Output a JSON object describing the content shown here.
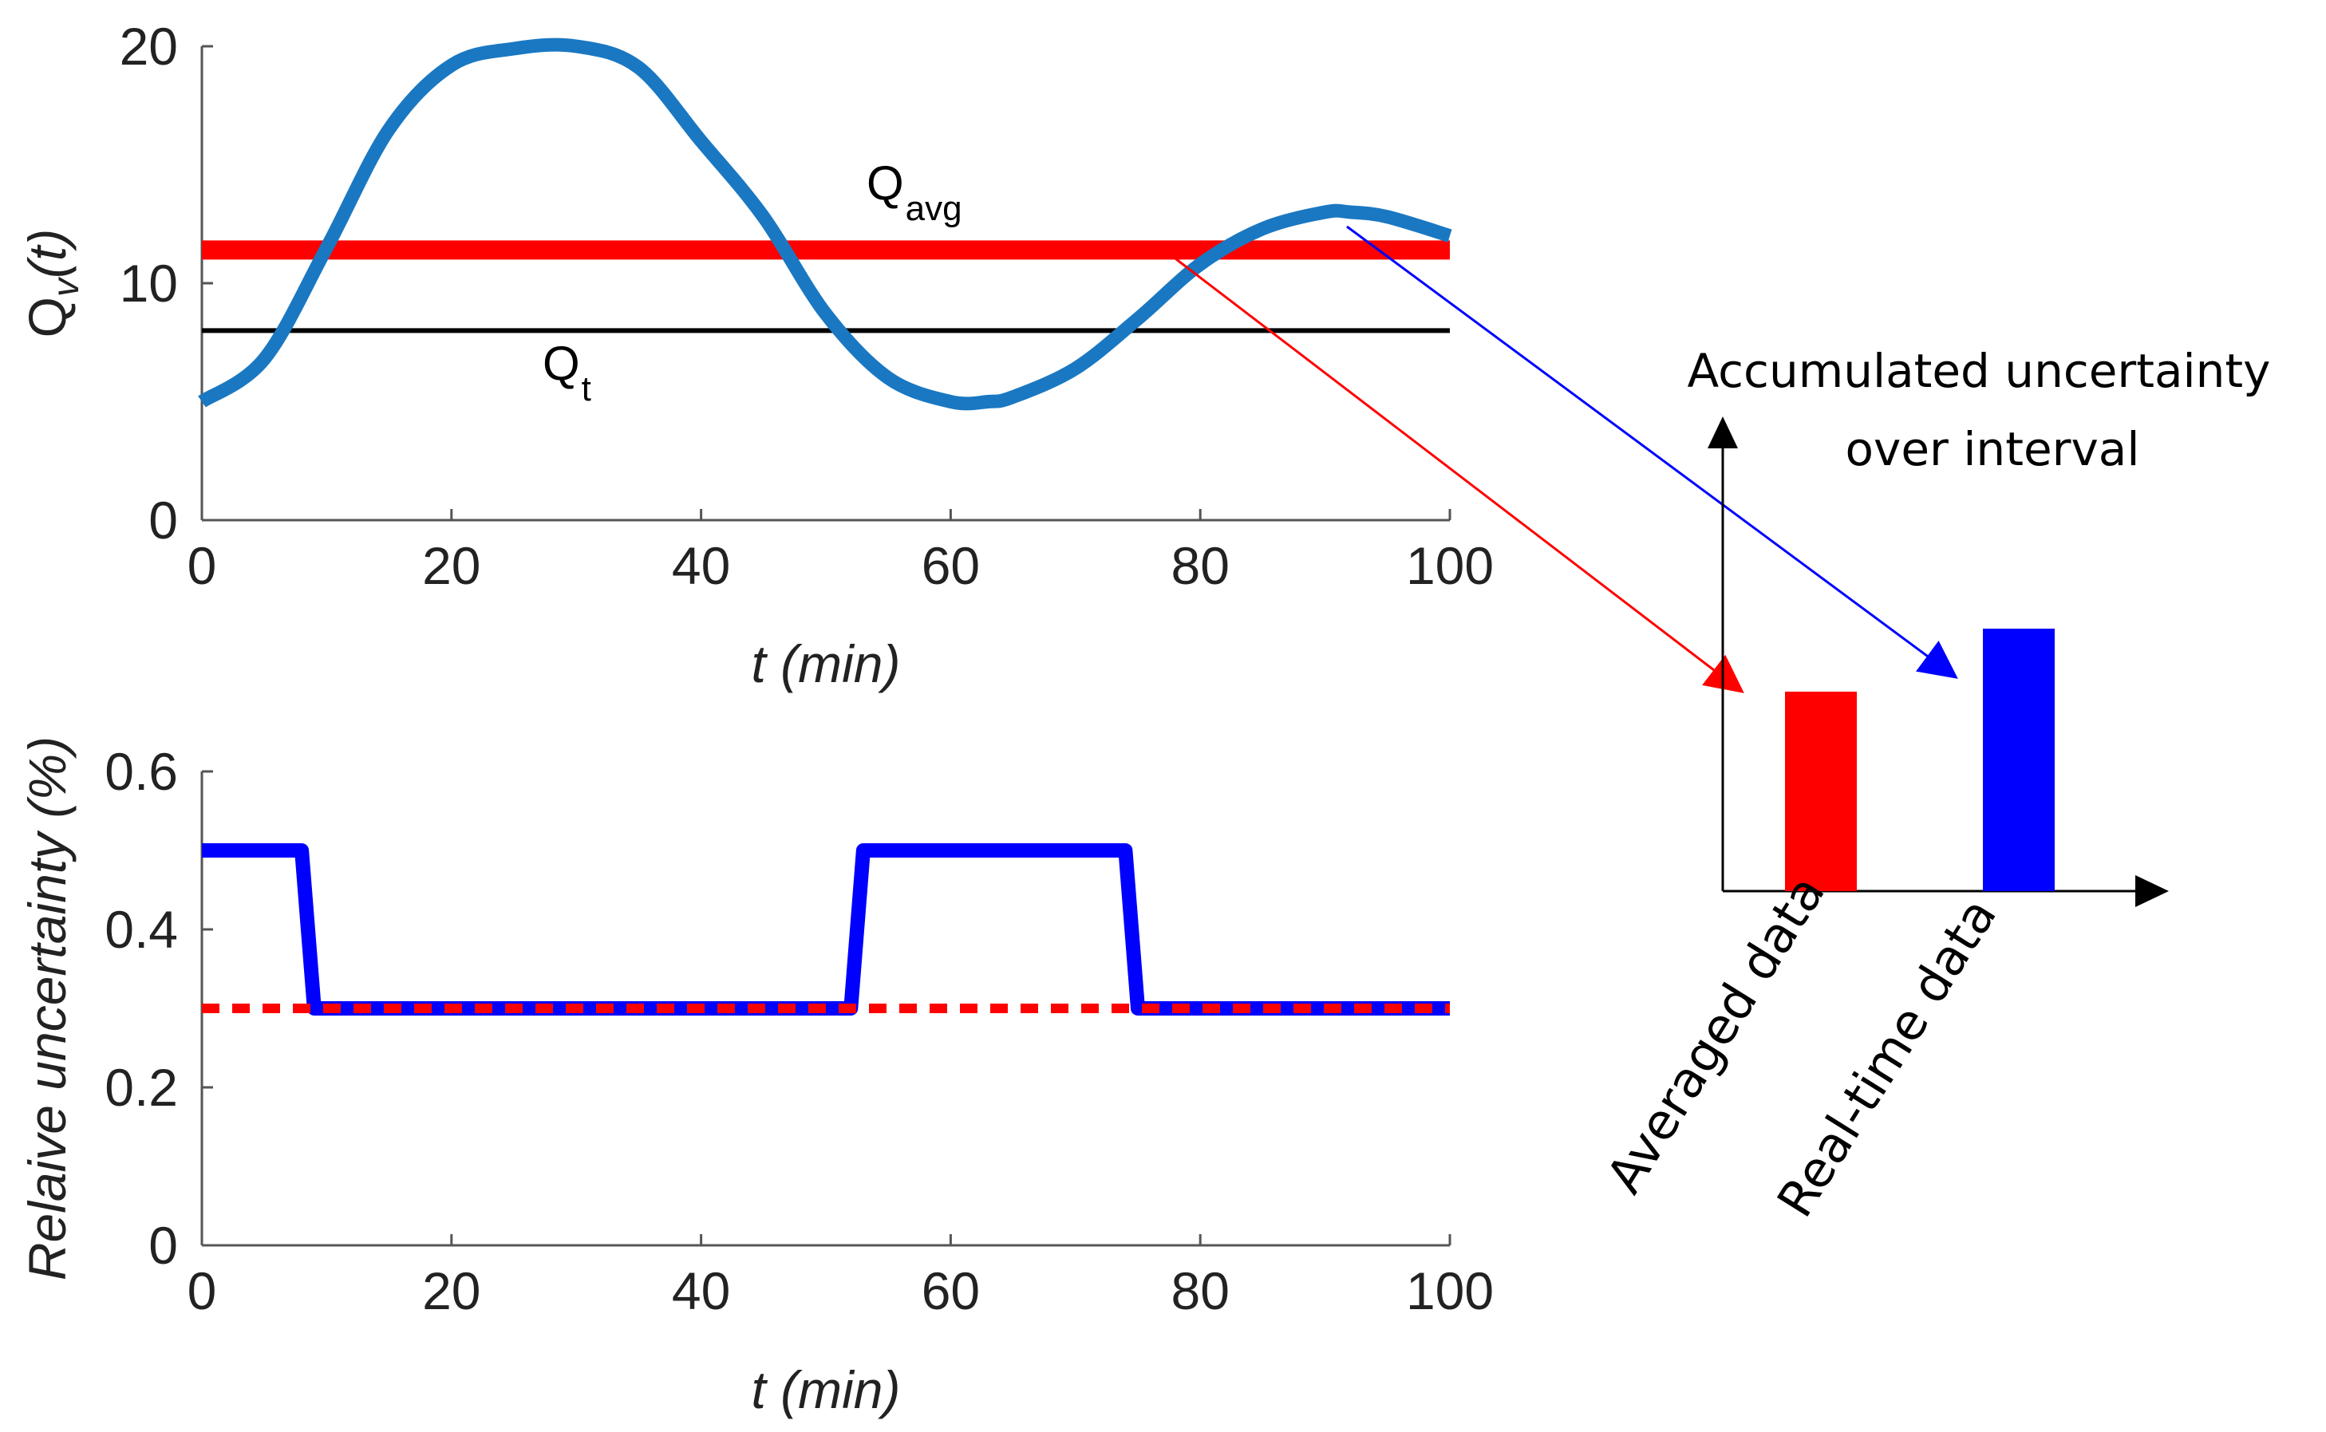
{
  "colors": {
    "flow_series": "#1a78c2",
    "average_line": "#ff0000",
    "threshold_line": "#000000",
    "realtime_uncertainty": "#0000ff",
    "averaged_uncertainty": "#ff0000",
    "axis": "#555555"
  },
  "chart_data": [
    {
      "id": "flow",
      "type": "line",
      "xlabel": "t (min)",
      "ylabel_main": "Q",
      "ylabel_sub": "v",
      "ylabel_tail": "(t)",
      "xlim": [
        0,
        100
      ],
      "ylim": [
        0,
        20
      ],
      "xticks": [
        0,
        20,
        40,
        60,
        80,
        100
      ],
      "yticks": [
        0,
        10,
        20
      ],
      "series": [
        {
          "name": "Qv(t)",
          "x": [
            0,
            5,
            10,
            15,
            20,
            25,
            30,
            35,
            40,
            45,
            50,
            55,
            60,
            63,
            65,
            70,
            75,
            80,
            85,
            90,
            92,
            95,
            100
          ],
          "y": [
            5,
            6.8,
            11.5,
            16.5,
            19.2,
            19.9,
            20,
            19.1,
            16,
            12.8,
            8.7,
            6,
            5,
            5,
            5.2,
            6.4,
            8.5,
            10.8,
            12.3,
            13,
            13,
            12.8,
            12
          ]
        },
        {
          "name": "Q_avg",
          "x": [
            0,
            100
          ],
          "y": [
            11.4,
            11.4
          ]
        },
        {
          "name": "Q_t",
          "x": [
            0,
            100
          ],
          "y": [
            8,
            8
          ]
        }
      ],
      "annotations": [
        {
          "main": "Q",
          "sub": "avg",
          "x": 53,
          "y": 12.4
        },
        {
          "main": "Q",
          "sub": "t",
          "x": 27,
          "y": 5.9
        }
      ]
    },
    {
      "id": "uncertainty",
      "type": "line",
      "xlabel": "t (min)",
      "ylabel": "Relaive uncertainty (%)",
      "xlim": [
        0,
        100
      ],
      "ylim": [
        0,
        0.6
      ],
      "xticks": [
        0,
        20,
        40,
        60,
        80,
        100
      ],
      "yticks": [
        0,
        0.2,
        0.4,
        0.6
      ],
      "series": [
        {
          "name": "Real-time uncertainty",
          "x": [
            0,
            8,
            9,
            52,
            53,
            74,
            75,
            100
          ],
          "y": [
            0.5,
            0.5,
            0.3,
            0.3,
            0.5,
            0.5,
            0.3,
            0.3
          ]
        },
        {
          "name": "Averaged uncertainty",
          "x": [
            0,
            100
          ],
          "y": [
            0.3,
            0.3
          ]
        }
      ]
    },
    {
      "id": "accumulated",
      "type": "bar",
      "title_line1": "Accumulated uncertainty",
      "title_line2": "over interval",
      "categories": [
        "Averaged data",
        "Real-time data"
      ],
      "values": [
        0.76,
        1.0
      ],
      "ylim": [
        0,
        1.0
      ]
    }
  ]
}
